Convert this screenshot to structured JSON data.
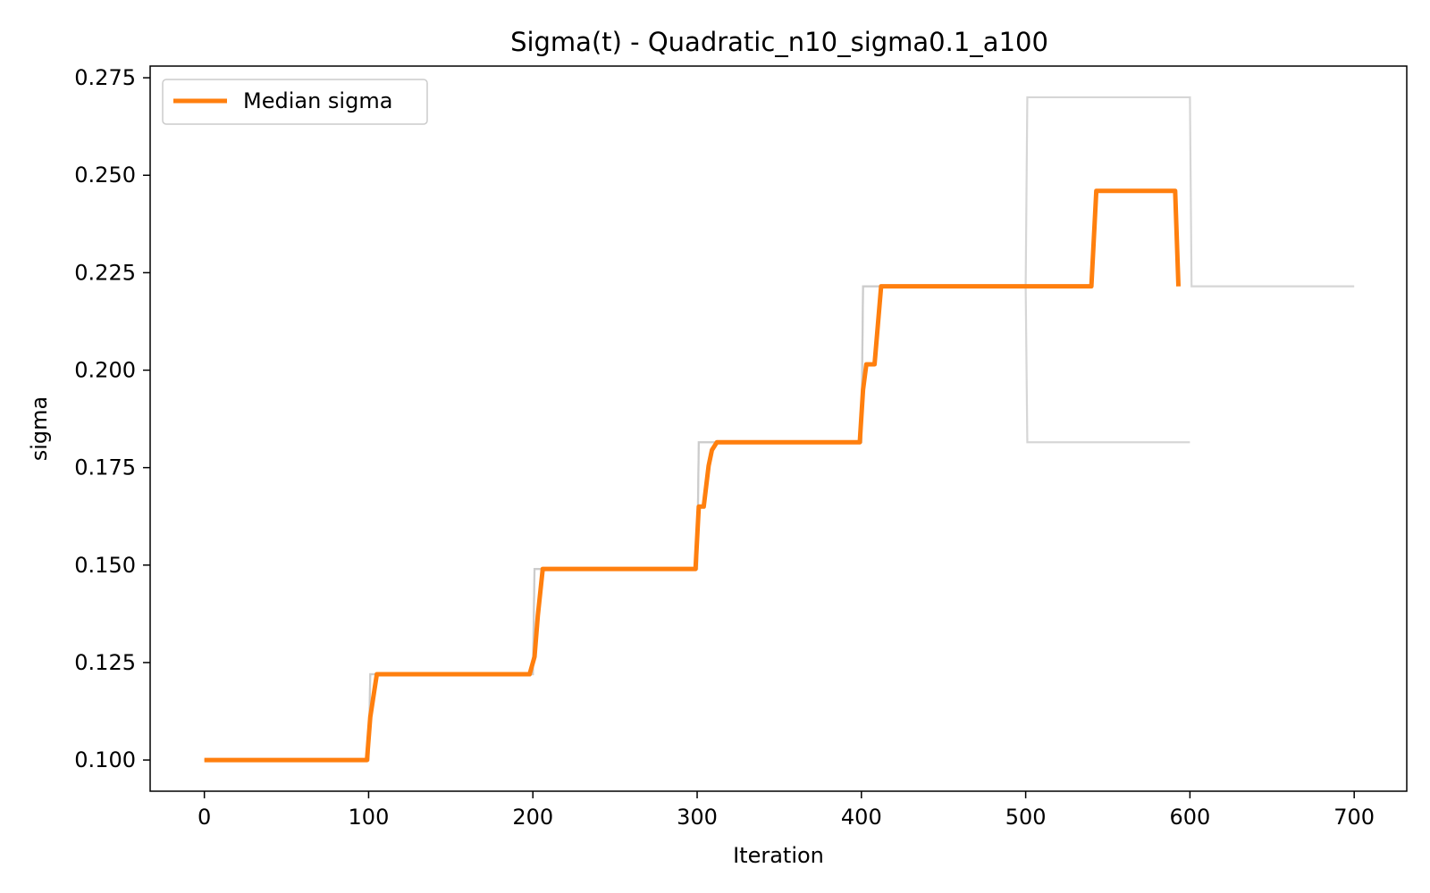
{
  "chart_data": {
    "type": "line",
    "title": "Sigma(t) - Quadratic_n10_sigma0.1_a100",
    "xlabel": "Iteration",
    "ylabel": "sigma",
    "xlim": [
      -33,
      732
    ],
    "ylim": [
      0.092,
      0.278
    ],
    "x_ticks": [
      0,
      100,
      200,
      300,
      400,
      500,
      600,
      700
    ],
    "x_tick_labels": [
      "0",
      "100",
      "200",
      "300",
      "400",
      "500",
      "600",
      "700"
    ],
    "y_ticks": [
      0.1,
      0.125,
      0.15,
      0.175,
      0.2,
      0.225,
      0.25,
      0.275
    ],
    "y_tick_labels": [
      "0.100",
      "0.125",
      "0.150",
      "0.175",
      "0.200",
      "0.225",
      "0.250",
      "0.275"
    ],
    "grid": false,
    "legend_position": "upper-left",
    "colors": {
      "median": "#ff7f0e",
      "runs": "#c8c8c8",
      "axes": "#000000"
    },
    "runs": [
      {
        "x": [
          0,
          100,
          101,
          200,
          201,
          300,
          301,
          400,
          401,
          500,
          501,
          600,
          601,
          700
        ],
        "y": [
          0.1,
          0.1,
          0.122,
          0.122,
          0.149,
          0.149,
          0.1815,
          0.1815,
          0.2215,
          0.2215,
          0.27,
          0.27,
          0.2215,
          0.2215
        ]
      },
      {
        "x": [
          0,
          100,
          101,
          200,
          201,
          300,
          301,
          400,
          401,
          500,
          501,
          600
        ],
        "y": [
          0.1,
          0.1,
          0.122,
          0.122,
          0.149,
          0.149,
          0.1815,
          0.1815,
          0.2215,
          0.2215,
          0.1815,
          0.1815
        ]
      }
    ],
    "series": [
      {
        "name": "Median sigma",
        "x": [
          0,
          99,
          101,
          105,
          198,
          201,
          203,
          206,
          299,
          301,
          304,
          307,
          309,
          312,
          399,
          401,
          403,
          408,
          412,
          540,
          543,
          591,
          593
        ],
        "y": [
          0.1,
          0.1,
          0.111,
          0.122,
          0.122,
          0.1265,
          0.137,
          0.149,
          0.149,
          0.165,
          0.165,
          0.1755,
          0.1795,
          0.1815,
          0.1815,
          0.195,
          0.2015,
          0.2015,
          0.2215,
          0.2215,
          0.246,
          0.246,
          0.2215
        ]
      }
    ]
  }
}
